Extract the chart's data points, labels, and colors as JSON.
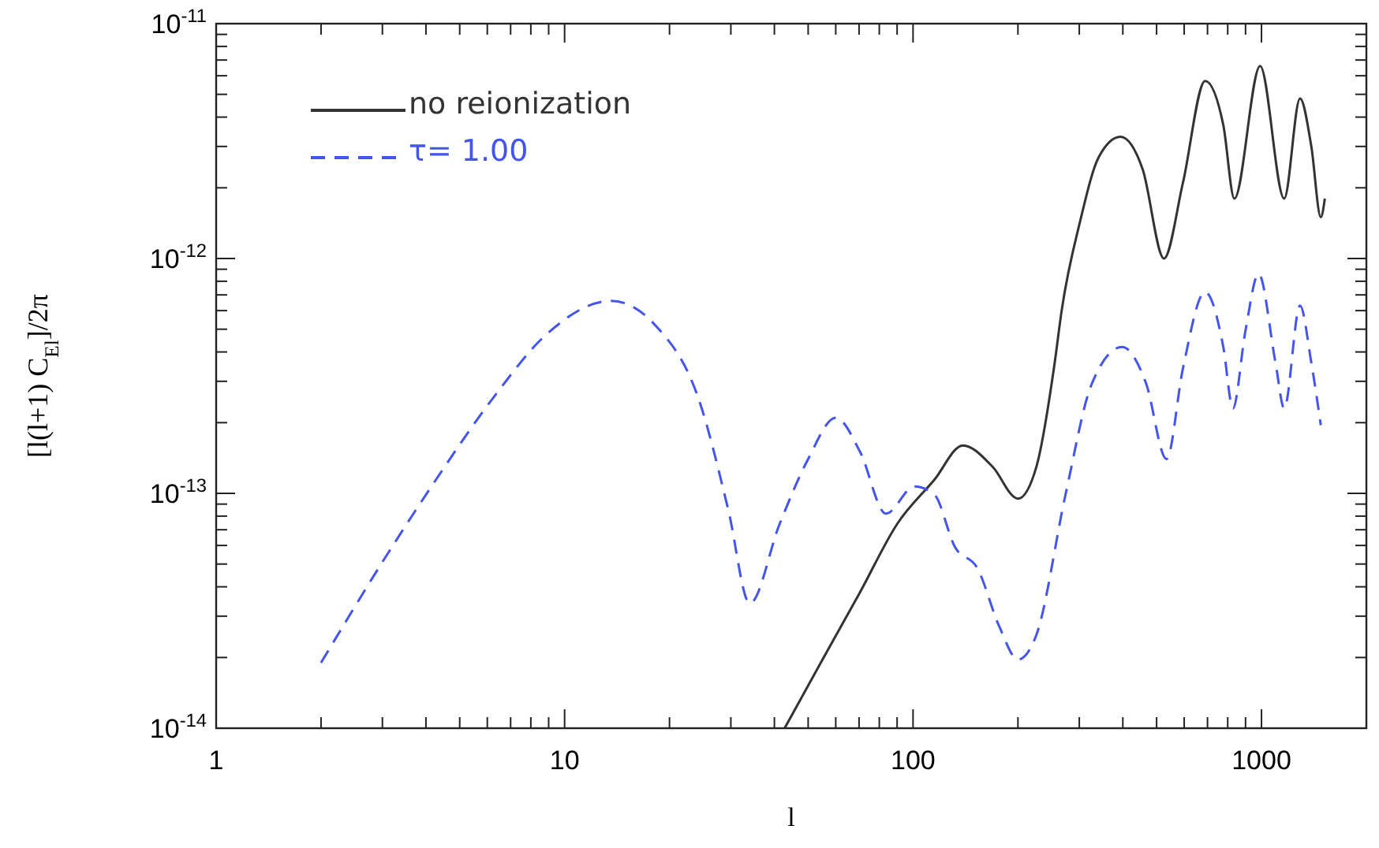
{
  "chart_data": {
    "type": "line",
    "xlabel": "l",
    "ylabel": "[l(l+1) C$_{El}$]/2π",
    "log": "xy",
    "legend": "top left",
    "grid": false,
    "xlim": [
      1,
      2000
    ],
    "ylim": [
      1e-14,
      1e-11
    ],
    "xticks": [
      1,
      {
        "value": 2,
        "label": null
      },
      {
        "value": 3,
        "label": null
      },
      {
        "value": 4,
        "label": null
      },
      {
        "value": 5,
        "label": null
      },
      {
        "value": 6,
        "label": null
      },
      {
        "value": 7,
        "label": null
      },
      {
        "value": 8,
        "label": null
      },
      {
        "value": 9,
        "label": null
      },
      10,
      {
        "value": 20,
        "label": null
      },
      {
        "value": 30,
        "label": null
      },
      {
        "value": 40,
        "label": null
      },
      {
        "value": 50,
        "label": null
      },
      {
        "value": 60,
        "label": null
      },
      {
        "value": 70,
        "label": null
      },
      {
        "value": 80,
        "label": null
      },
      {
        "value": 90,
        "label": null
      },
      100,
      {
        "value": 200,
        "label": null
      },
      {
        "value": 300,
        "label": null
      },
      {
        "value": 400,
        "label": null
      },
      {
        "value": 500,
        "label": null
      },
      {
        "value": 600,
        "label": null
      },
      {
        "value": 700,
        "label": null
      },
      {
        "value": 800,
        "label": null
      },
      {
        "value": 900,
        "label": null
      },
      1000
    ],
    "yticks": [
      {
        "value": 1e-14,
        "label": "10$^{-14}$"
      },
      {
        "value": 2e-14,
        "label": null
      },
      {
        "value": 3e-14,
        "label": null
      },
      {
        "value": 4e-14,
        "label": null
      },
      {
        "value": 5e-14,
        "label": null
      },
      {
        "value": 6e-14,
        "label": null
      },
      {
        "value": 7e-14,
        "label": null
      },
      {
        "value": 8e-14,
        "label": null
      },
      {
        "value": 9e-14,
        "label": null
      },
      {
        "value": 1e-13,
        "label": "10$^{-13}$"
      },
      {
        "value": 2e-13,
        "label": null
      },
      {
        "value": 3e-13,
        "label": null
      },
      {
        "value": 4e-13,
        "label": null
      },
      {
        "value": 5e-13,
        "label": null
      },
      {
        "value": 6e-13,
        "label": null
      },
      {
        "value": 7e-13,
        "label": null
      },
      {
        "value": 8e-13,
        "label": null
      },
      {
        "value": 9e-13,
        "label": null
      },
      {
        "value": 1e-12,
        "label": "10$^{-12}$"
      },
      {
        "value": 2e-12,
        "label": null
      },
      {
        "value": 3e-12,
        "label": null
      },
      {
        "value": 4e-12,
        "label": null
      },
      {
        "value": 5e-12,
        "label": null
      },
      {
        "value": 6e-12,
        "label": null
      },
      {
        "value": 7e-12,
        "label": null
      },
      {
        "value": 8e-12,
        "label": null
      },
      {
        "value": 9e-12,
        "label": null
      },
      {
        "value": 1e-11,
        "label": "10$^{-11}$"
      }
    ],
    "series": [
      {
        "name": "no reionization",
        "color": "#333333",
        "line_style": "solid",
        "x": [
          42.8,
          55.4,
          70.5,
          90,
          115,
          139,
          169,
          200,
          226,
          255,
          267,
          302,
          341,
          394,
          456,
          525,
          595,
          689,
          777,
          836,
          991,
          1162,
          1290,
          1390,
          1480,
          1520
        ],
        "values": [
          1e-14,
          2e-14,
          3.8e-14,
          7.4e-14,
          1.14e-13,
          1.6e-13,
          1.3e-13,
          9.5e-14,
          1.3e-13,
          3.6e-13,
          6e-13,
          1.45e-12,
          2.7e-12,
          3.3e-12,
          2.4e-12,
          1e-12,
          2.1e-12,
          5.7e-12,
          3.7e-12,
          1.8e-12,
          6.6e-12,
          1.8e-12,
          4.8e-12,
          3e-12,
          1.5e-12,
          1.8e-12
        ]
      },
      {
        "name": "τ= 1.00",
        "color": "#4455ee",
        "line_style": "dashed",
        "x": [
          2,
          3,
          4.2,
          6.3,
          8.8,
          13.6,
          18.2,
          24.3,
          29.5,
          34,
          41.4,
          50,
          60,
          70.5,
          83.6,
          101,
          115,
          132,
          153,
          177,
          200,
          226,
          274,
          325,
          398,
          466,
          534,
          595,
          689,
          777,
          828,
          899,
          981,
          1097,
          1162,
          1290,
          1390,
          1480
        ],
        "values": [
          1.9e-14,
          5.1e-14,
          1.1e-13,
          2.6e-13,
          4.7e-13,
          6.6e-13,
          5.2e-13,
          2.5e-13,
          8.5e-14,
          3.4e-14,
          7.4e-14,
          1.4e-13,
          2.1e-13,
          1.5e-13,
          8.2e-14,
          1.07e-13,
          9.9e-14,
          5.9e-14,
          4.8e-14,
          2.7e-14,
          1.96e-14,
          2.5e-14,
          9.9e-14,
          2.9e-13,
          4.2e-13,
          2.95e-13,
          1.4e-13,
          3.4e-13,
          7.2e-13,
          4.2e-13,
          2.3e-13,
          4.9e-13,
          8.6e-13,
          3.6e-13,
          2.3e-13,
          6.3e-13,
          3.6e-13,
          1.95e-13
        ]
      }
    ]
  }
}
